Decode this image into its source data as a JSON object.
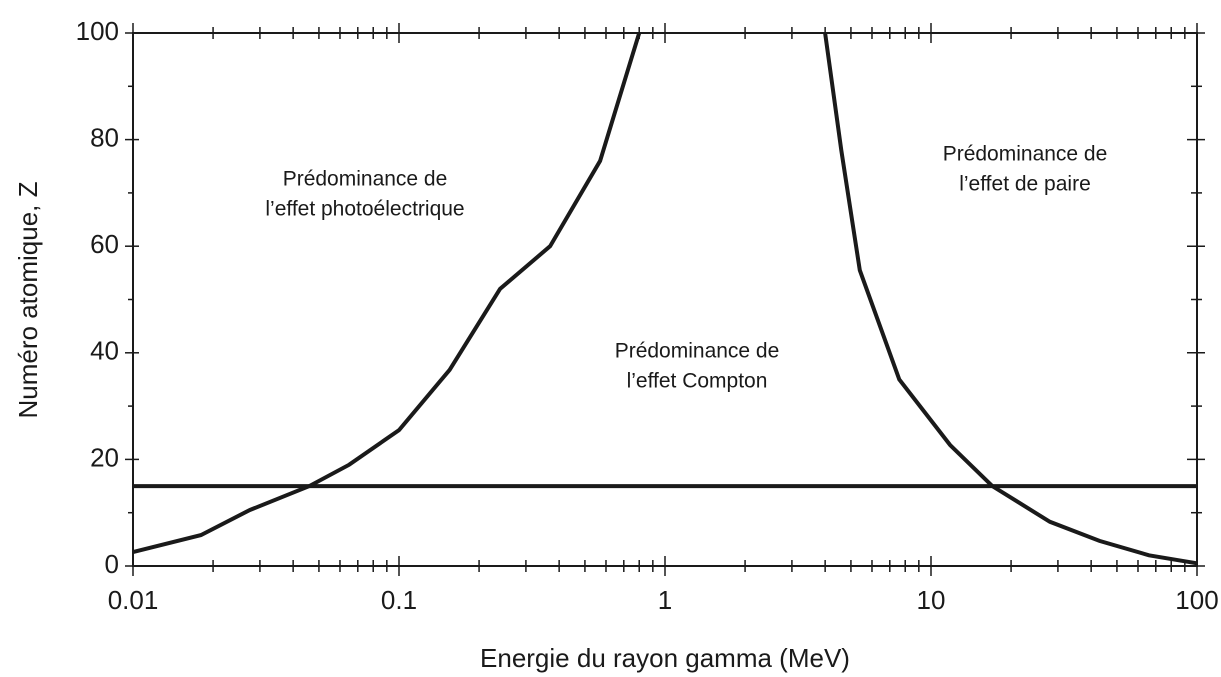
{
  "chart_data": {
    "type": "line",
    "xlabel": "Energie du rayon gamma (MeV)",
    "ylabel": "Numéro atomique, Z",
    "xscale": "log",
    "xlim": [
      0.01,
      100
    ],
    "ylim": [
      0,
      100
    ],
    "xticks": [
      0.01,
      0.1,
      1,
      10,
      100
    ],
    "yticks": [
      0,
      20,
      40,
      60,
      80,
      100
    ],
    "grid": false,
    "series": [
      {
        "color": "#1a1a1a",
        "x": [
          0.01,
          0.018,
          0.0275,
          0.046,
          0.065,
          0.1,
          0.155,
          0.24,
          0.37,
          0.57,
          0.8
        ],
        "values": [
          2.6,
          5.8,
          10.5,
          15,
          19,
          25.5,
          36.8,
          52,
          60,
          76,
          100
        ]
      },
      {
        "color": "#1a1a1a",
        "x": [
          4,
          4.6,
          5.4,
          7.6,
          11.8,
          17,
          28,
          43,
          66,
          100
        ],
        "values": [
          100,
          78,
          55.5,
          35,
          22.7,
          15,
          8.3,
          4.7,
          2,
          0.5
        ]
      },
      {
        "color": "#1a1a1a",
        "x": [
          0.01,
          100
        ],
        "values": [
          15,
          15
        ]
      }
    ],
    "annotations": [
      [
        "Prédominance de",
        "l’effet photoélectrique"
      ],
      [
        "Prédominance de",
        "l’effet Compton"
      ],
      [
        "Prédominance de",
        "l’effet de paire"
      ]
    ]
  }
}
